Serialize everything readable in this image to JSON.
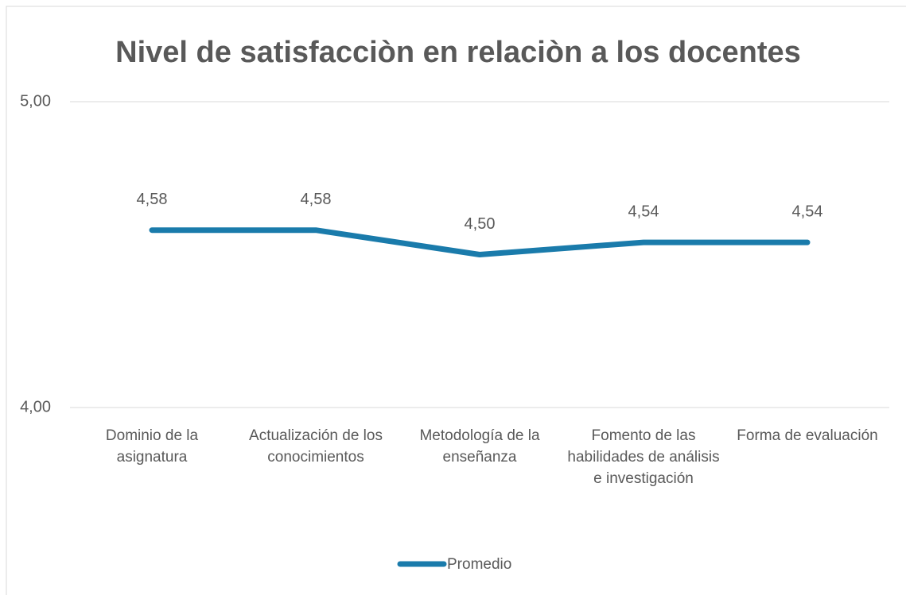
{
  "chart_data": {
    "type": "line",
    "title": "Nivel de satisfacciòn en relaciòn a los docentes",
    "categories": [
      "Dominio de la asignatura",
      "Actualización de los conocimientos",
      "Metodología de la enseñanza",
      "Fomento de las habilidades de análisis e investigación",
      "Forma de evaluación"
    ],
    "series": [
      {
        "name": "Promedio",
        "color": "#1a7bab",
        "values": [
          4.58,
          4.58,
          4.5,
          4.54,
          4.54
        ],
        "value_labels": [
          "4,58",
          "4,58",
          "4,50",
          "4,54",
          "4,54"
        ]
      }
    ],
    "ylim": [
      4,
      5
    ],
    "yticks": [
      {
        "value": 4,
        "label": "4,00"
      },
      {
        "value": 5,
        "label": "5,00"
      }
    ],
    "grid": true,
    "legend": "bottom"
  }
}
